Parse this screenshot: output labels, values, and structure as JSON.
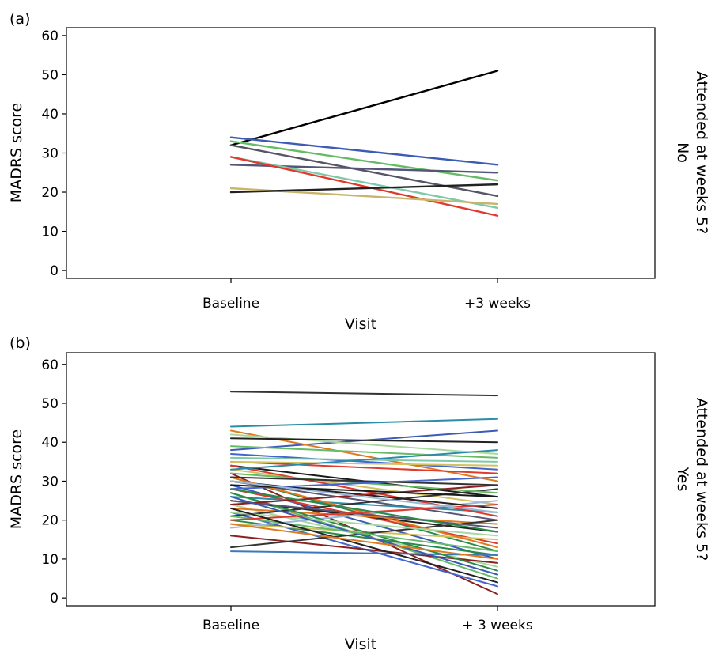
{
  "chart_data": [
    {
      "type": "line",
      "panel_label": "(a)",
      "xlabel": "Visit",
      "ylabel": "MADRS score",
      "strip_label": [
        "Attended at weeks 5?",
        "No"
      ],
      "categories": [
        "Baseline",
        "+3 weeks"
      ],
      "ylim": [
        -2,
        62
      ],
      "yticks": [
        0,
        10,
        20,
        30,
        40,
        50,
        60
      ],
      "grid": false,
      "legend": "none",
      "series": [
        {
          "color": "#000000",
          "values": [
            32,
            51
          ]
        },
        {
          "color": "#3b5bb5",
          "values": [
            34,
            27
          ]
        },
        {
          "color": "#66bb66",
          "values": [
            33,
            23
          ]
        },
        {
          "color": "#555566",
          "values": [
            32,
            19
          ]
        },
        {
          "color": "#555577",
          "values": [
            27,
            25
          ]
        },
        {
          "color": "#7fc9a8",
          "values": [
            29,
            16
          ]
        },
        {
          "color": "#e03a2e",
          "values": [
            29,
            14
          ]
        },
        {
          "color": "#c9b46a",
          "values": [
            21,
            17
          ]
        },
        {
          "color": "#222222",
          "values": [
            20,
            22
          ]
        }
      ]
    },
    {
      "type": "line",
      "panel_label": "(b)",
      "xlabel": "Visit",
      "ylabel": "MADRS score",
      "strip_label": [
        "Attended at weeks 5?",
        "Yes"
      ],
      "categories": [
        "Baseline",
        "+ 3 weeks"
      ],
      "ylim": [
        -2,
        63
      ],
      "yticks": [
        0,
        10,
        20,
        30,
        40,
        50,
        60
      ],
      "grid": false,
      "legend": "none",
      "series": [
        {
          "color": "#333333",
          "values": [
            53,
            52
          ]
        },
        {
          "color": "#2a8ca8",
          "values": [
            44,
            46
          ]
        },
        {
          "color": "#3b5bb5",
          "values": [
            38,
            43
          ]
        },
        {
          "color": "#e07a20",
          "values": [
            43,
            30
          ]
        },
        {
          "color": "#a8d8a0",
          "values": [
            42,
            37
          ]
        },
        {
          "color": "#222222",
          "values": [
            41,
            40
          ]
        },
        {
          "color": "#66bb66",
          "values": [
            39,
            36
          ]
        },
        {
          "color": "#4466cc",
          "values": [
            37,
            33
          ]
        },
        {
          "color": "#e03a2e",
          "values": [
            35,
            32
          ]
        },
        {
          "color": "#1a1a1a",
          "values": [
            34,
            26
          ]
        },
        {
          "color": "#8b2020",
          "values": [
            32,
            1
          ]
        },
        {
          "color": "#2a8a4a",
          "values": [
            31,
            12
          ]
        },
        {
          "color": "#d4c060",
          "values": [
            33,
            24
          ]
        },
        {
          "color": "#555577",
          "values": [
            30,
            20
          ]
        },
        {
          "color": "#3b5bb5",
          "values": [
            29,
            10
          ]
        },
        {
          "color": "#e03a2e",
          "values": [
            28,
            14
          ]
        },
        {
          "color": "#66bb66",
          "values": [
            27,
            5
          ]
        },
        {
          "color": "#2a8ca8",
          "values": [
            26,
            22
          ]
        },
        {
          "color": "#222222",
          "values": [
            25,
            17
          ]
        },
        {
          "color": "#a8d8a0",
          "values": [
            24,
            8
          ]
        },
        {
          "color": "#e07a20",
          "values": [
            23,
            19
          ]
        },
        {
          "color": "#4466cc",
          "values": [
            22,
            3
          ]
        },
        {
          "color": "#333333",
          "values": [
            21,
            28
          ]
        },
        {
          "color": "#2a8a4a",
          "values": [
            20,
            11
          ]
        },
        {
          "color": "#d4c060",
          "values": [
            19,
            15
          ]
        },
        {
          "color": "#9ab8d8",
          "values": [
            18,
            25
          ]
        },
        {
          "color": "#8b2020",
          "values": [
            16,
            9
          ]
        },
        {
          "color": "#333333",
          "values": [
            13,
            20
          ]
        },
        {
          "color": "#3b7ab5",
          "values": [
            12,
            11
          ]
        },
        {
          "color": "#e03a2e",
          "values": [
            34,
            21
          ]
        },
        {
          "color": "#66bb66",
          "values": [
            32,
            27
          ]
        },
        {
          "color": "#222222",
          "values": [
            30,
            23
          ]
        },
        {
          "color": "#7fc9a8",
          "values": [
            36,
            35
          ]
        },
        {
          "color": "#e07a20",
          "values": [
            31,
            13
          ]
        },
        {
          "color": "#4466cc",
          "values": [
            28,
            31
          ]
        },
        {
          "color": "#2a8a4a",
          "values": [
            27,
            7
          ]
        },
        {
          "color": "#555577",
          "values": [
            25,
            18
          ]
        },
        {
          "color": "#8b2020",
          "values": [
            24,
            29
          ]
        },
        {
          "color": "#a8d8a0",
          "values": [
            22,
            16
          ]
        },
        {
          "color": "#1a1a1a",
          "values": [
            29,
            26
          ]
        },
        {
          "color": "#d4c060",
          "values": [
            35,
            34
          ]
        },
        {
          "color": "#3b5bb5",
          "values": [
            26,
            6
          ]
        },
        {
          "color": "#66bb66",
          "values": [
            21,
            12
          ]
        },
        {
          "color": "#e03a2e",
          "values": [
            20,
            24
          ]
        },
        {
          "color": "#2a8ca8",
          "values": [
            33,
            38
          ]
        },
        {
          "color": "#222222",
          "values": [
            23,
            4
          ]
        },
        {
          "color": "#9ab8d8",
          "values": [
            30,
            22
          ]
        },
        {
          "color": "#e07a20",
          "values": [
            19,
            10
          ]
        },
        {
          "color": "#2a8a4a",
          "values": [
            28,
            17
          ]
        },
        {
          "color": "#333333",
          "values": [
            31,
            29
          ]
        }
      ]
    }
  ]
}
